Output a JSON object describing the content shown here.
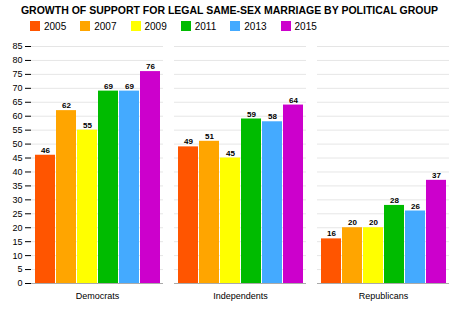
{
  "chart_data": {
    "type": "bar",
    "title": "GROWTH OF SUPPORT FOR LEGAL SAME-SEX MARRIAGE BY POLITICAL GROUP",
    "categories": [
      "Democrats",
      "Independents",
      "Republicans"
    ],
    "series": [
      {
        "name": "2005",
        "color": "#FF5500",
        "values": [
          46,
          49,
          16
        ]
      },
      {
        "name": "2007",
        "color": "#FFA500",
        "values": [
          62,
          51,
          20
        ]
      },
      {
        "name": "2009",
        "color": "#FFFF00",
        "values": [
          55,
          45,
          20
        ]
      },
      {
        "name": "2011",
        "color": "#00BB00",
        "values": [
          69,
          59,
          28
        ]
      },
      {
        "name": "2013",
        "color": "#44AAFF",
        "values": [
          69,
          58,
          26
        ]
      },
      {
        "name": "2015",
        "color": "#CC00CC",
        "values": [
          76,
          64,
          37
        ]
      }
    ],
    "ylim": [
      0,
      85
    ],
    "yticks": [
      0,
      5,
      10,
      15,
      20,
      25,
      30,
      35,
      40,
      45,
      50,
      55,
      60,
      65,
      70,
      75,
      80,
      85
    ],
    "grid": true,
    "legend": "top",
    "data_labels": true
  }
}
